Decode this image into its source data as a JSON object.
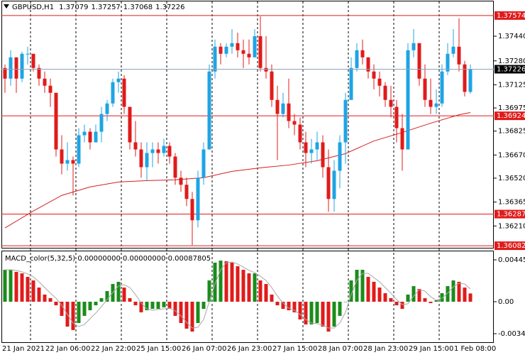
{
  "chart_data": [
    {
      "type": "candlestick",
      "title": "GBPUSD,H1",
      "open": [
        1.37234,
        1.37165,
        1.37303,
        1.37165,
        1.37326,
        1.37326,
        1.37234,
        1.37165,
        1.37119,
        1.37073,
        1.36706,
        1.36614,
        1.36637,
        1.36614,
        1.36798,
        1.36821,
        1.36752,
        1.36821,
        1.36936,
        1.37004,
        1.37142,
        1.37165,
        1.36982,
        1.36752,
        1.36706,
        1.36591,
        1.36683,
        1.36706,
        1.36683,
        1.36729,
        1.3666,
        1.36523,
        1.36477,
        1.36385,
        1.36247,
        1.36523,
        1.36706,
        1.37211,
        1.37372,
        1.37326,
        1.37372,
        1.37395,
        1.37349,
        1.37326,
        1.37303,
        1.3744,
        1.37234,
        1.37211,
        1.37027,
        1.36936,
        1.37004,
        1.3689,
        1.36867,
        1.36752,
        1.36683,
        1.36706,
        1.36752,
        1.36591,
        1.36385,
        1.36568,
        1.36752,
        1.37027,
        1.37234,
        1.37349,
        1.37303,
        1.37211,
        1.37165,
        1.37119,
        1.37027,
        1.36982,
        1.36844,
        1.36706,
        1.37349,
        1.37395,
        1.37165,
        1.37027,
        1.36982,
        1.37004,
        1.37211,
        1.37326,
        1.37372,
        1.37257,
        1.37079
      ],
      "high": [
        1.37257,
        1.37349,
        1.37303,
        1.3734,
        1.37372,
        1.37326,
        1.37257,
        1.37211,
        1.37165,
        1.37073,
        1.36798,
        1.36752,
        1.3666,
        1.36844,
        1.36867,
        1.36844,
        1.36867,
        1.36982,
        1.37027,
        1.37165,
        1.37211,
        1.37188,
        1.36982,
        1.3689,
        1.36752,
        1.36752,
        1.36752,
        1.36752,
        1.36775,
        1.36752,
        1.36683,
        1.36568,
        1.36523,
        1.36431,
        1.36568,
        1.36752,
        1.37257,
        1.37418,
        1.37395,
        1.37395,
        1.37486,
        1.37463,
        1.37418,
        1.37418,
        1.37486,
        1.37569,
        1.3744,
        1.37257,
        1.37119,
        1.37073,
        1.37165,
        1.36936,
        1.36913,
        1.36821,
        1.36775,
        1.36821,
        1.36798,
        1.36706,
        1.36637,
        1.36798,
        1.37073,
        1.37303,
        1.37395,
        1.37418,
        1.37303,
        1.37257,
        1.37211,
        1.37142,
        1.37119,
        1.37027,
        1.36936,
        1.37395,
        1.37486,
        1.37395,
        1.37257,
        1.37165,
        1.37096,
        1.37257,
        1.37395,
        1.37486,
        1.37555,
        1.3728,
        1.37257
      ],
      "low": [
        1.37073,
        1.37119,
        1.37073,
        1.37142,
        1.37257,
        1.37211,
        1.37119,
        1.37073,
        1.36982,
        1.3666,
        1.36545,
        1.36568,
        1.36408,
        1.36591,
        1.36752,
        1.36706,
        1.36752,
        1.36752,
        1.3689,
        1.36982,
        1.37073,
        1.36936,
        1.36706,
        1.3666,
        1.36523,
        1.365,
        1.36591,
        1.36614,
        1.3666,
        1.36614,
        1.36477,
        1.36431,
        1.36339,
        1.36086,
        1.36201,
        1.36477,
        1.36706,
        1.37165,
        1.37257,
        1.37303,
        1.37326,
        1.37303,
        1.37234,
        1.37257,
        1.37303,
        1.37211,
        1.37165,
        1.36982,
        1.36637,
        1.36913,
        1.36844,
        1.36798,
        1.36706,
        1.36591,
        1.36614,
        1.36637,
        1.36523,
        1.36302,
        1.36302,
        1.36454,
        1.36614,
        1.37027,
        1.37211,
        1.37257,
        1.37165,
        1.37096,
        1.3705,
        1.36982,
        1.36913,
        1.36752,
        1.36568,
        1.36706,
        1.37303,
        1.37119,
        1.36982,
        1.36936,
        1.36936,
        1.36982,
        1.37188,
        1.37303,
        1.37211,
        1.3705,
        1.37068
      ],
      "close": [
        1.37165,
        1.37303,
        1.37165,
        1.37326,
        1.37326,
        1.37234,
        1.37165,
        1.37119,
        1.37073,
        1.36706,
        1.36614,
        1.36637,
        1.36614,
        1.36798,
        1.36821,
        1.36752,
        1.36821,
        1.36936,
        1.37004,
        1.37142,
        1.37165,
        1.36982,
        1.36752,
        1.36706,
        1.36591,
        1.36683,
        1.36706,
        1.36683,
        1.36729,
        1.3666,
        1.36523,
        1.36477,
        1.36385,
        1.36247,
        1.36523,
        1.36706,
        1.37211,
        1.37372,
        1.37326,
        1.37372,
        1.37395,
        1.37349,
        1.37326,
        1.37303,
        1.3744,
        1.37234,
        1.37211,
        1.37027,
        1.36936,
        1.37004,
        1.3689,
        1.36867,
        1.36752,
        1.36683,
        1.36706,
        1.36752,
        1.36591,
        1.36385,
        1.36568,
        1.36752,
        1.37027,
        1.37234,
        1.37349,
        1.37303,
        1.37211,
        1.37165,
        1.37119,
        1.37027,
        1.36982,
        1.36844,
        1.36706,
        1.37349,
        1.37395,
        1.37165,
        1.37027,
        1.36982,
        1.37004,
        1.37211,
        1.37326,
        1.37372,
        1.37257,
        1.37079,
        1.37226
      ],
      "up_color": "#1fa4e4",
      "down_color": "#e01b1b",
      "ylim": [
        1.36064,
        1.3767
      ],
      "yticks": [
        {
          "value": 1.3744,
          "label": "1.37440"
        },
        {
          "value": 1.3728,
          "label": "1.37280"
        },
        1.37125,
        1.36975,
        1.36825,
        {
          "value": 1.3667,
          "label": "1.36670"
        },
        {
          "value": 1.3652,
          "label": "1.36520"
        },
        1.36365,
        {
          "value": 1.3621,
          "label": "1.36210"
        }
      ],
      "levels": [
        1.37574,
        1.36924,
        1.36287,
        1.36082
      ],
      "level_color": "#e01b1b",
      "bid_color": "#8fa3b8",
      "ma": {
        "x": [
          0,
          5,
          10,
          15,
          20,
          25,
          30,
          35,
          40,
          45,
          50,
          55,
          60,
          65,
          70,
          75,
          80,
          82
        ],
        "values": [
          1.36197,
          1.36307,
          1.36408,
          1.36463,
          1.36495,
          1.36504,
          1.36509,
          1.36523,
          1.36564,
          1.36587,
          1.36605,
          1.36633,
          1.36679,
          1.36761,
          1.36816,
          1.36876,
          1.36931,
          1.36945
        ],
        "color": "#d42020"
      },
      "grid": true,
      "xticks": [
        {
          "value": 0,
          "label": "21 Jan 2021"
        },
        {
          "value": 5,
          "label": "22 Jan 06:00"
        },
        {
          "value": 13,
          "label": "22 Jan 22:00"
        },
        {
          "value": 21,
          "label": "25 Jan 15:00"
        },
        {
          "value": 29,
          "label": "26 Jan 07:00"
        },
        {
          "value": 37,
          "label": "26 Jan 23:00"
        },
        {
          "value": 45,
          "label": "27 Jan 15:00"
        },
        {
          "value": 53,
          "label": "28 Jan 07:00"
        },
        {
          "value": 61,
          "label": "28 Jan 23:00"
        },
        {
          "value": 69,
          "label": "29 Jan 15:00"
        },
        {
          "value": 77,
          "label": "1 Feb 08:00"
        }
      ]
    },
    {
      "type": "macd",
      "title": "MACD_color(5,32,5) 0.00000000 0.00000000 0.00087805",
      "values": [
        0.0034,
        0.0034,
        0.00318,
        0.00302,
        0.00265,
        0.00227,
        0.00151,
        0.00076,
        0.00038,
        -0.00038,
        -0.00151,
        -0.00265,
        -0.00302,
        -0.00227,
        -0.00151,
        -0.00091,
        -0.00038,
        0.00038,
        0.00113,
        0.00189,
        0.00212,
        0.00151,
        0.00038,
        -0.00038,
        -0.00113,
        -0.00091,
        -0.00076,
        -0.00076,
        -0.0006,
        -0.00076,
        -0.00151,
        -0.00227,
        -0.00287,
        -0.00318,
        -0.00227,
        -0.00076,
        0.00227,
        0.00416,
        0.00438,
        0.00431,
        0.00416,
        0.00378,
        0.0034,
        0.00302,
        0.00302,
        0.00227,
        0.00189,
        0.00076,
        -0.00038,
        -0.00076,
        -0.00091,
        -0.00113,
        -0.00189,
        -0.00242,
        -0.00242,
        -0.00227,
        -0.00265,
        -0.00318,
        -0.00265,
        -0.00151,
        0,
        0.00227,
        0.0034,
        0.0034,
        0.00265,
        0.00212,
        0.00151,
        0.00091,
        0.00038,
        -0.00038,
        -0.00076,
        0.00076,
        0.00166,
        0.00136,
        0.00038,
        -0.00015,
        0.00015,
        0.00091,
        0.00166,
        0.00227,
        0.00212,
        0.00151,
        0.00088
      ],
      "signal": [
        0.0034,
        0.0034,
        0.00333,
        0.00318,
        0.00295,
        0.00265,
        0.00212,
        0.00151,
        0.00091,
        0.00038,
        -0.00038,
        -0.00136,
        -0.00227,
        -0.00265,
        -0.00242,
        -0.00181,
        -0.00121,
        -0.00053,
        0.00023,
        0.00098,
        0.00166,
        0.00181,
        0.00151,
        0.00076,
        -0.00015,
        -0.00076,
        -0.00091,
        -0.00083,
        -0.00076,
        -0.00068,
        -0.00098,
        -0.00151,
        -0.00219,
        -0.0028,
        -0.00272,
        -0.00189,
        0,
        0.00189,
        0.0034,
        0.00416,
        0.00423,
        0.00401,
        0.0037,
        0.00333,
        0.0031,
        0.00272,
        0.00227,
        0.00151,
        0.0006,
        -0.00015,
        -0.00068,
        -0.00091,
        -0.00136,
        -0.00189,
        -0.00227,
        -0.00234,
        -0.00249,
        -0.0028,
        -0.0028,
        -0.00227,
        -0.00113,
        0.00076,
        0.00227,
        0.00302,
        0.00302,
        0.00257,
        0.00212,
        0.00151,
        0.00091,
        0.00023,
        -0.0003,
        -0.00023,
        0.0006,
        0.00129,
        0.00113,
        0.00053,
        0.00015,
        0.00038,
        0.00091,
        0.00159,
        0.00197,
        0.00189,
        0.00136
      ],
      "up_color": "#1a8c1a",
      "down_color": "#e01b1b",
      "signal_color": "#a8a8a8",
      "ylim": [
        -0.00439,
        0.00529
      ],
      "yticks": [
        0.0044581,
        {
          "value": 0,
          "label": "0.00"
        },
        -0.003407
      ]
    }
  ]
}
